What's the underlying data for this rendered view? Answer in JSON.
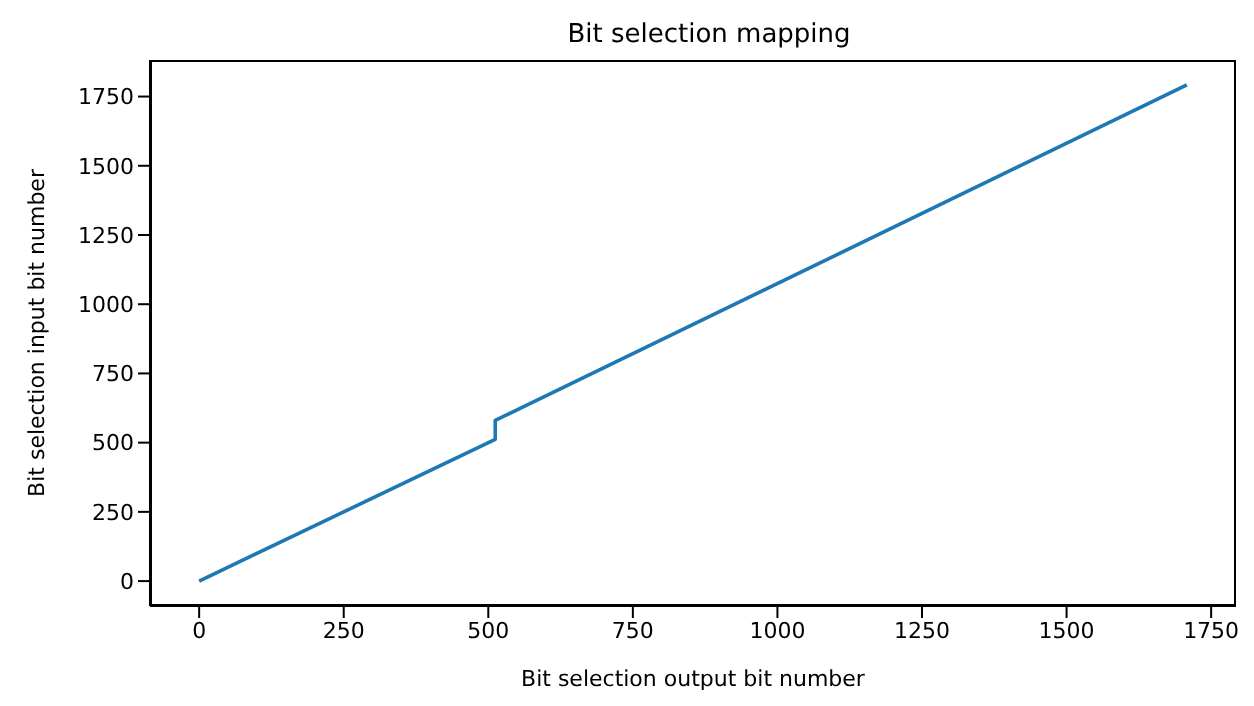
{
  "chart_data": {
    "type": "line",
    "title": "Bit selection mapping",
    "xlabel": "Bit selection output bit number",
    "ylabel": "Bit selection input bit number",
    "x": [
      0,
      512,
      512,
      1708
    ],
    "series": [
      {
        "color": "#1f77b4",
        "values": [
          0,
          512,
          580,
          1792
        ]
      }
    ],
    "xlim": [
      -85,
      1793
    ],
    "ylim": [
      -90,
      1882
    ],
    "xticks": [
      0,
      250,
      500,
      750,
      1000,
      1250,
      1500,
      1750
    ],
    "yticks": [
      0,
      250,
      500,
      750,
      1000,
      1250,
      1500,
      1750
    ],
    "grid": false,
    "legend": false,
    "marker": "none",
    "line_style": "solid"
  }
}
